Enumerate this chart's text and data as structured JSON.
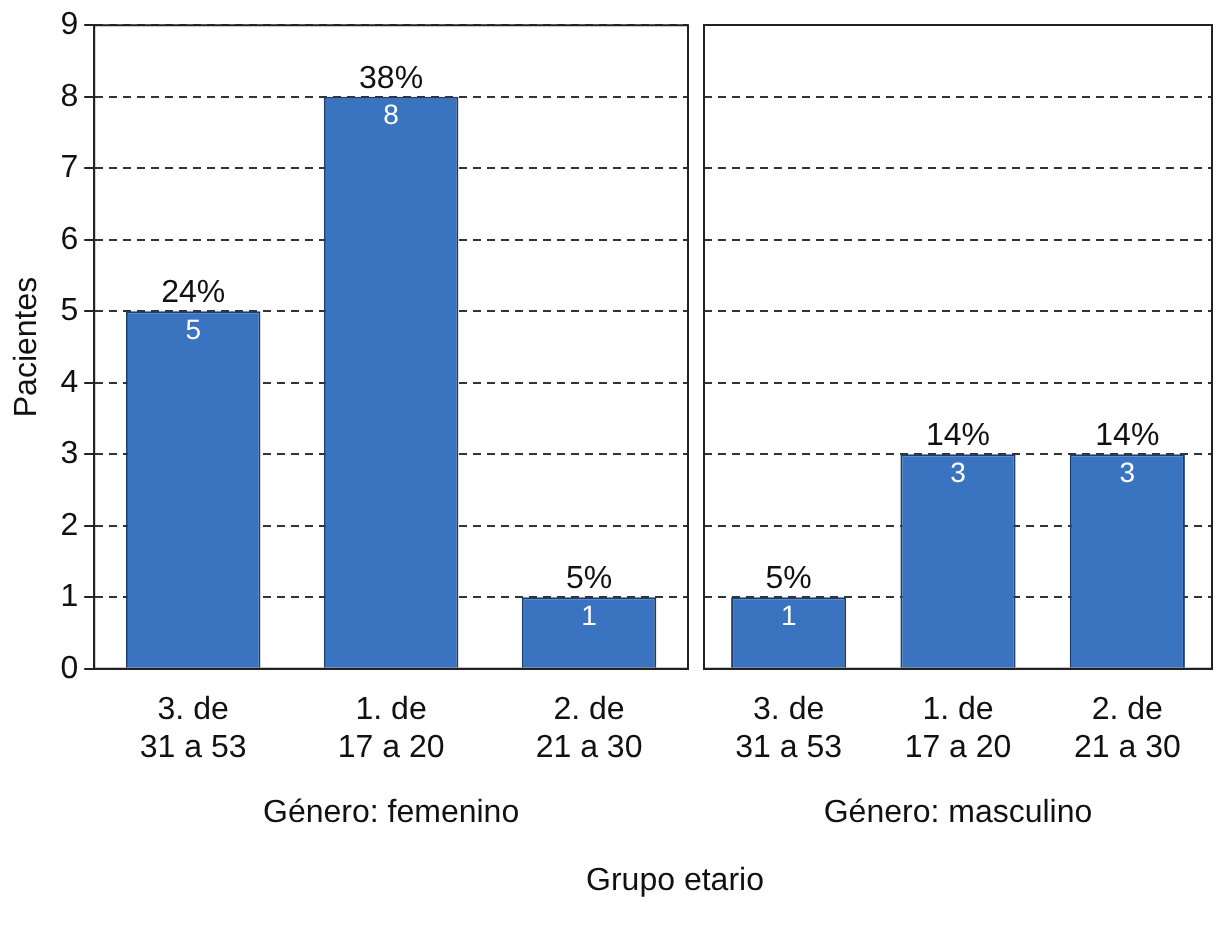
{
  "chart_data": [
    {
      "type": "bar",
      "categories": [
        "3. de\n31 a 53",
        "1. de\n17 a 20",
        "2. de\n21 a 30"
      ],
      "values": [
        5,
        8,
        1
      ],
      "data_labels": true,
      "color": "#3a74c0",
      "xlabel": "Género: femenino",
      "ylabel": "Pacientes",
      "ylim": [
        0,
        9
      ],
      "yticks": [
        0,
        1,
        2,
        3,
        4,
        5,
        6,
        7,
        8,
        9
      ],
      "grid": "y",
      "legend": false,
      "annotations": [
        "Grupo etario",
        {
          "text": "24%",
          "x": "3. de\n31 a 53",
          "y": 5
        },
        {
          "text": "38%",
          "x": "1. de\n17 a 20",
          "y": 8
        },
        {
          "text": "5%",
          "x": "2. de\n21 a 30",
          "y": 1
        }
      ]
    },
    {
      "type": "bar",
      "categories": [
        "3. de\n31 a 53",
        "1. de\n17 a 20",
        "2. de\n21 a 30"
      ],
      "values": [
        1,
        3,
        3
      ],
      "data_labels": true,
      "color": "#3a74c0",
      "xlabel": "Género: masculino",
      "ylim": [
        0,
        9
      ],
      "yticks": [
        0,
        1,
        2,
        3,
        4,
        5,
        6,
        7,
        8,
        9
      ],
      "grid": "y",
      "legend": false,
      "tick_labels": "x",
      "annotations": [
        {
          "text": "5%",
          "x": "3. de\n31 a 53",
          "y": 1
        },
        {
          "text": "14%",
          "x": "1. de\n17 a 20",
          "y": 3
        },
        {
          "text": "14%",
          "x": "2. de\n21 a 30",
          "y": 3
        }
      ]
    }
  ]
}
